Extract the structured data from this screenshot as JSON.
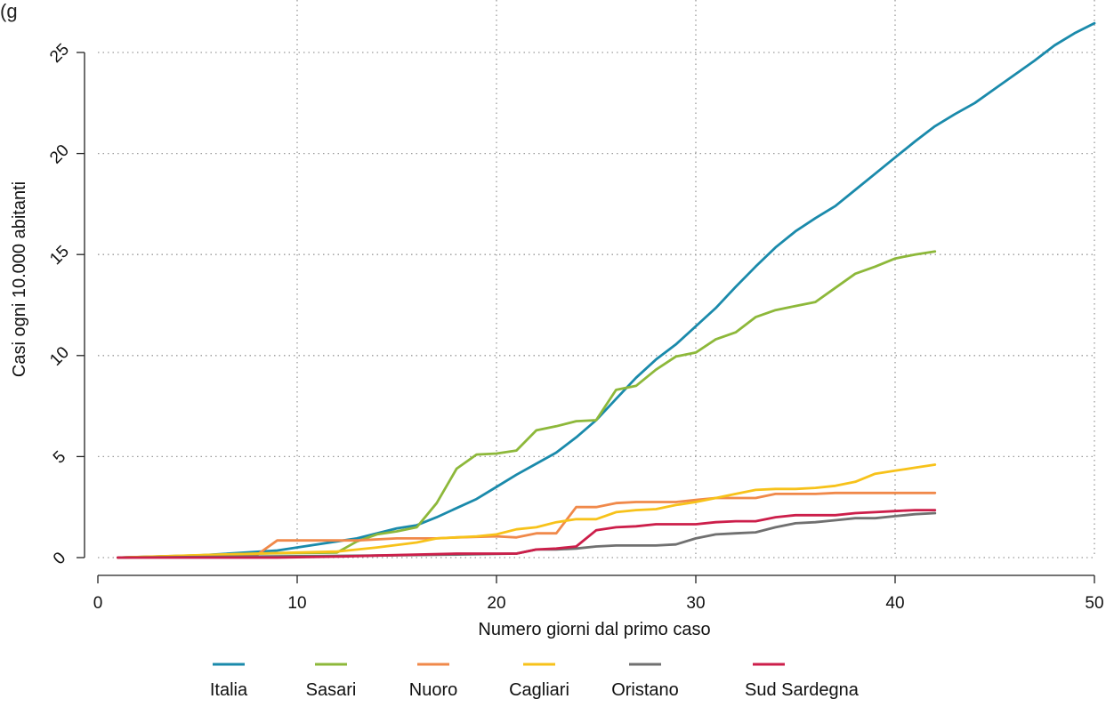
{
  "title_fragment": "(g",
  "chart_data": {
    "type": "line",
    "xlabel": "Numero giorni dal primo caso",
    "ylabel": "Casi ogni 10.000 abitanti",
    "xlim": [
      0,
      50
    ],
    "ylim": [
      0,
      26.5
    ],
    "x_ticks": [
      0,
      10,
      20,
      30,
      40,
      50
    ],
    "y_ticks": [
      0,
      5,
      10,
      15,
      20,
      25
    ],
    "grid": "dotted vertical and horizontal",
    "legend_position": "bottom",
    "series": [
      {
        "name": "Italia",
        "color": "#1a8aab",
        "x": [
          1,
          5,
          9,
          13,
          15,
          16,
          17,
          18,
          19,
          20,
          21,
          22,
          23,
          24,
          25,
          26,
          27,
          28,
          29,
          30,
          31,
          32,
          33,
          34,
          35,
          36,
          37,
          38,
          39,
          40,
          41,
          42,
          43,
          44,
          45,
          46,
          47,
          48,
          49,
          50
        ],
        "y": [
          0.0,
          0.1,
          0.35,
          0.95,
          1.45,
          1.6,
          2.0,
          2.45,
          2.9,
          3.5,
          4.1,
          4.65,
          5.2,
          5.95,
          6.8,
          7.85,
          8.9,
          9.8,
          10.55,
          11.45,
          12.35,
          13.4,
          14.4,
          15.35,
          16.15,
          16.8,
          17.4,
          18.2,
          19.0,
          19.8,
          20.6,
          21.35,
          21.95,
          22.5,
          23.2,
          23.9,
          24.6,
          25.35,
          25.95,
          26.45
        ]
      },
      {
        "name": "Sasari",
        "color": "#8db83a",
        "x": [
          1,
          8,
          12,
          13,
          14,
          15,
          16,
          17,
          18,
          19,
          20,
          21,
          22,
          23,
          24,
          25,
          26,
          27,
          28,
          29,
          30,
          31,
          32,
          33,
          34,
          35,
          36,
          37,
          38,
          39,
          40,
          41,
          42
        ],
        "y": [
          0.0,
          0.2,
          0.25,
          0.8,
          1.15,
          1.3,
          1.5,
          2.7,
          4.4,
          5.1,
          5.15,
          5.3,
          6.3,
          6.5,
          6.75,
          6.8,
          8.3,
          8.5,
          9.3,
          9.95,
          10.15,
          10.8,
          11.15,
          11.9,
          12.25,
          12.45,
          12.65,
          13.35,
          14.05,
          14.4,
          14.8,
          15.0,
          15.15
        ]
      },
      {
        "name": "Nuoro",
        "color": "#f0894a",
        "x": [
          1,
          8,
          9,
          12,
          13,
          15,
          16,
          17,
          18,
          20,
          21,
          22,
          23,
          24,
          25,
          26,
          27,
          28,
          29,
          30,
          31,
          32,
          33,
          34,
          35,
          36,
          37,
          38,
          39,
          40,
          41,
          42
        ],
        "y": [
          0.0,
          0.15,
          0.85,
          0.85,
          0.85,
          0.95,
          0.95,
          0.95,
          1.0,
          1.05,
          1.0,
          1.2,
          1.2,
          2.5,
          2.5,
          2.7,
          2.75,
          2.75,
          2.75,
          2.85,
          2.95,
          2.95,
          2.95,
          3.15,
          3.15,
          3.15,
          3.2,
          3.2,
          3.2,
          3.2,
          3.2,
          3.2
        ]
      },
      {
        "name": "Cagliari",
        "color": "#f7c21a",
        "x": [
          1,
          6,
          8,
          10,
          12,
          14,
          16,
          17,
          18,
          19,
          20,
          21,
          22,
          23,
          24,
          25,
          26,
          27,
          28,
          29,
          30,
          31,
          32,
          33,
          34,
          35,
          36,
          37,
          38,
          39,
          40,
          41,
          42
        ],
        "y": [
          0.0,
          0.15,
          0.2,
          0.25,
          0.3,
          0.5,
          0.75,
          0.95,
          1.0,
          1.05,
          1.15,
          1.4,
          1.5,
          1.75,
          1.9,
          1.9,
          2.25,
          2.35,
          2.4,
          2.6,
          2.75,
          2.95,
          3.15,
          3.35,
          3.4,
          3.4,
          3.45,
          3.55,
          3.75,
          4.15,
          4.3,
          4.45,
          4.6
        ]
      },
      {
        "name": "Oristano",
        "color": "#707070",
        "x": [
          1,
          14,
          18,
          21,
          22,
          23,
          24,
          25,
          26,
          27,
          28,
          29,
          30,
          31,
          32,
          33,
          34,
          35,
          36,
          37,
          38,
          39,
          40,
          41,
          42
        ],
        "y": [
          0.0,
          0.1,
          0.15,
          0.2,
          0.4,
          0.4,
          0.45,
          0.55,
          0.6,
          0.6,
          0.6,
          0.65,
          0.95,
          1.15,
          1.2,
          1.25,
          1.5,
          1.7,
          1.75,
          1.85,
          1.95,
          1.95,
          2.05,
          2.15,
          2.2
        ]
      },
      {
        "name": "Sud Sardegna",
        "color": "#cc1e4a",
        "x": [
          1,
          9,
          12,
          14,
          18,
          21,
          22,
          23,
          24,
          25,
          26,
          27,
          28,
          29,
          30,
          31,
          32,
          33,
          34,
          35,
          36,
          37,
          38,
          39,
          40,
          41,
          42
        ],
        "y": [
          0.0,
          0.0,
          0.05,
          0.1,
          0.2,
          0.2,
          0.4,
          0.45,
          0.55,
          1.35,
          1.5,
          1.55,
          1.65,
          1.65,
          1.65,
          1.75,
          1.8,
          1.8,
          2.0,
          2.1,
          2.1,
          2.1,
          2.2,
          2.25,
          2.3,
          2.35,
          2.35
        ]
      }
    ]
  }
}
